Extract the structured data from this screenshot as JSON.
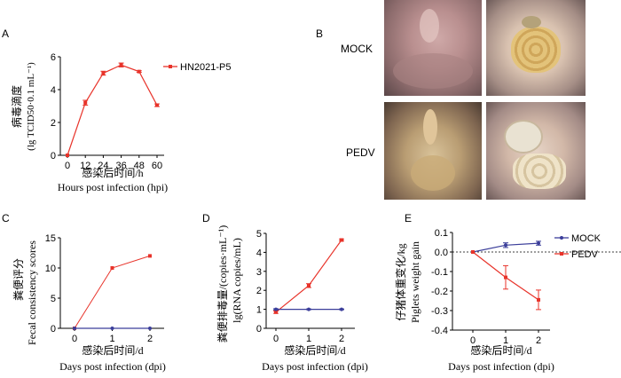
{
  "panels": {
    "A": {
      "letter": "A",
      "chart_data": {
        "type": "line",
        "x": [
          0,
          12,
          24,
          36,
          48,
          60
        ],
        "series": [
          {
            "name": "HN2021-P5",
            "values": [
              0,
              3.2,
              5.0,
              5.5,
              5.1,
              3.05
            ],
            "errors": [
              0,
              0.15,
              0.12,
              0.12,
              0.05,
              0.08
            ]
          }
        ],
        "xlim": [
          0,
          60
        ],
        "ylim": [
          0,
          6
        ],
        "xticks": [
          "0",
          "12",
          "24",
          "36",
          "48",
          "60"
        ],
        "yticks": [
          "0",
          "2",
          "4",
          "6"
        ],
        "xlabel_cn": "感染后时间/h",
        "xlabel_en": "Hours post infection (hpi)",
        "ylabel_cn": "病毒滴度",
        "ylabel_en": "(lg TCID50·0.1 mL⁻¹)",
        "legend": "top-right"
      }
    },
    "B": {
      "letter": "B",
      "rows": [
        {
          "label": "MOCK"
        },
        {
          "label": "PEDV"
        }
      ]
    },
    "C": {
      "letter": "C",
      "chart_data": {
        "type": "line",
        "x": [
          0,
          1,
          2
        ],
        "series": [
          {
            "values": [
              0,
              10,
              12
            ]
          },
          {
            "values": [
              0,
              0,
              0
            ]
          }
        ],
        "xlim": [
          0,
          2
        ],
        "ylim": [
          0,
          15
        ],
        "xticks": [
          "0",
          "1",
          "2"
        ],
        "yticks": [
          "0",
          "5",
          "10",
          "15"
        ],
        "xlabel_cn": "感染后时间/d",
        "xlabel_en": "Days post infection (dpi)",
        "ylabel_cn": "粪便评分",
        "ylabel_en": "Fecal consistency scores"
      }
    },
    "D": {
      "letter": "D",
      "chart_data": {
        "type": "line",
        "x": [
          0,
          1,
          2
        ],
        "series": [
          {
            "values": [
              0.85,
              2.25,
              4.65
            ],
            "errors": [
              0.06,
              0.1,
              0.05
            ]
          },
          {
            "values": [
              1.0,
              1.0,
              1.0
            ],
            "errors": [
              0.03,
              0.02,
              0.02
            ]
          }
        ],
        "xlim": [
          0,
          2
        ],
        "ylim": [
          0,
          5
        ],
        "xticks": [
          "0",
          "1",
          "2"
        ],
        "yticks": [
          "0",
          "1",
          "2",
          "3",
          "4",
          "5"
        ],
        "xlabel_cn": "感染后时间/d",
        "xlabel_en": "Days post infection (dpi)",
        "ylabel_cn": "粪便排毒量/(copies·mL⁻¹)",
        "ylabel_en": "lg(RNA copies/mL)"
      }
    },
    "E": {
      "letter": "E",
      "chart_data": {
        "type": "line",
        "x": [
          0,
          1,
          2
        ],
        "series": [
          {
            "name": "MOCK",
            "values": [
              0,
              0.035,
              0.045
            ],
            "errors": [
              0,
              0.012,
              0.01
            ]
          },
          {
            "name": "PEDV",
            "values": [
              0,
              -0.13,
              -0.245
            ],
            "errors": [
              0,
              0.06,
              0.05
            ]
          }
        ],
        "xlim": [
          0,
          2
        ],
        "ylim": [
          -0.4,
          0.1
        ],
        "xticks": [
          "0",
          "1",
          "2"
        ],
        "yticks": [
          "-0.4",
          "-0.3",
          "-0.2",
          "-0.1",
          "0.0",
          "0.1"
        ],
        "xlabel_cn": "感染后时间/d",
        "xlabel_en": "Days post infection (dpi)",
        "ylabel_cn": "仔猪体重变化/kg",
        "ylabel_en": "Piglets weight gain",
        "legend": "top-right"
      }
    }
  },
  "colors": {
    "red": "#e8332a",
    "blue": "#3b3e9a"
  }
}
